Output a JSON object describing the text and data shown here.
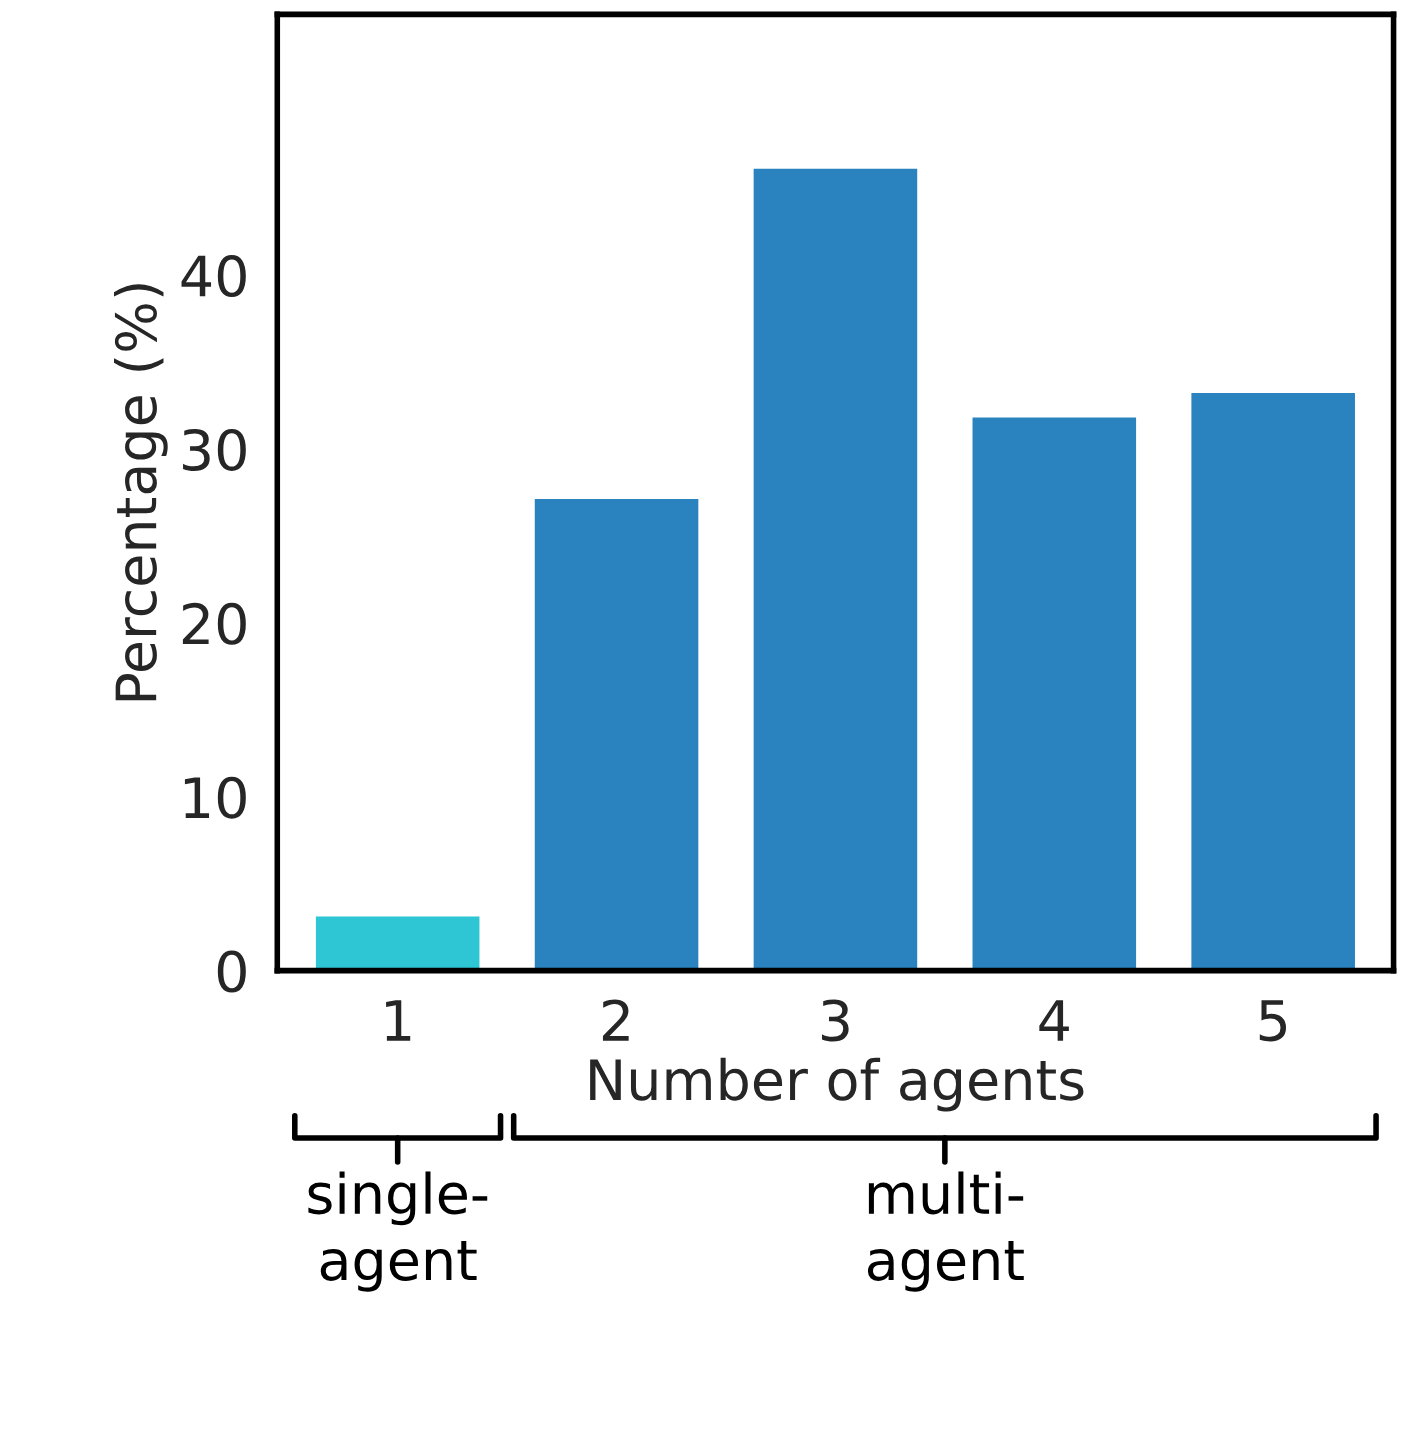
{
  "chart_data": {
    "type": "bar",
    "xlabel": "Number of agents",
    "ylabel": "Percentage (%)",
    "categories": [
      "1",
      "2",
      "3",
      "4",
      "5"
    ],
    "values": [
      3.2,
      27.2,
      46.2,
      31.9,
      33.3
    ],
    "colors": [
      "#2ec5d5",
      "#2a82be",
      "#2a82be",
      "#2a82be",
      "#2a82be"
    ],
    "ylim": [
      0,
      55
    ],
    "yticks": [
      0,
      10,
      20,
      30,
      40
    ],
    "annotations": [
      "single-\nagent",
      "multi-\nagent"
    ]
  }
}
